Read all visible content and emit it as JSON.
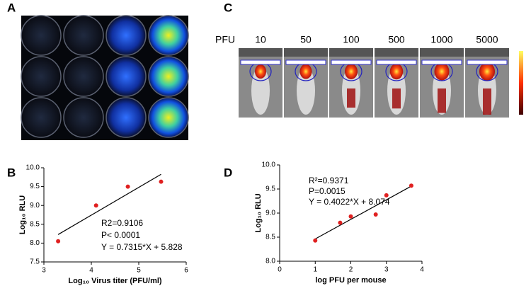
{
  "panel_labels": [
    "A",
    "B",
    "C",
    "D"
  ],
  "imaging": {
    "unit": "PFU",
    "doses": [
      "10",
      "50",
      "100",
      "500",
      "1000",
      "5000"
    ]
  },
  "chart_data": [
    {
      "type": "scatter",
      "xlabel": "Log₁₀ Virus titer (PFU/ml)",
      "ylabel": "Log₁₀ RLU",
      "annotations": [
        "R2=0.9106",
        "P< 0.0001",
        "Y = 0.7315*X + 5.828"
      ],
      "x": [
        3.3,
        4.1,
        4.77,
        5.47
      ],
      "values": [
        8.05,
        9.0,
        9.5,
        9.63
      ],
      "color": "#e02020",
      "xlim": [
        3,
        6
      ],
      "xticks": [
        3,
        4,
        5,
        6
      ],
      "ylim": [
        7.5,
        10
      ],
      "yticks": [
        7.5,
        {
          "value": 8,
          "label": "8.0"
        },
        8.5,
        {
          "value": 9,
          "label": "9.0"
        },
        9.5,
        {
          "value": 10,
          "label": "10.0"
        }
      ],
      "fit_line": true
    },
    {
      "type": "scatter",
      "xlabel": "log PFU per mouse",
      "ylabel": "Log₁₀ RLU",
      "annotations": [
        "R²=0.9371",
        "P=0.0015",
        "Y = 0.4022*X + 8.074"
      ],
      "x": [
        1,
        1.7,
        2,
        2.7,
        3,
        3.7
      ],
      "values": [
        8.43,
        8.8,
        8.93,
        8.97,
        9.37,
        9.57
      ],
      "color": "#e02020",
      "xlim": [
        0,
        4
      ],
      "xticks": [
        0,
        1,
        2,
        3,
        4
      ],
      "ylim": [
        8,
        10
      ],
      "yticks": [
        {
          "value": 8,
          "label": "8.0"
        },
        8.5,
        {
          "value": 9,
          "label": "9.0"
        },
        9.5,
        {
          "value": 10,
          "label": "10.0"
        }
      ],
      "fit_line": true
    }
  ]
}
